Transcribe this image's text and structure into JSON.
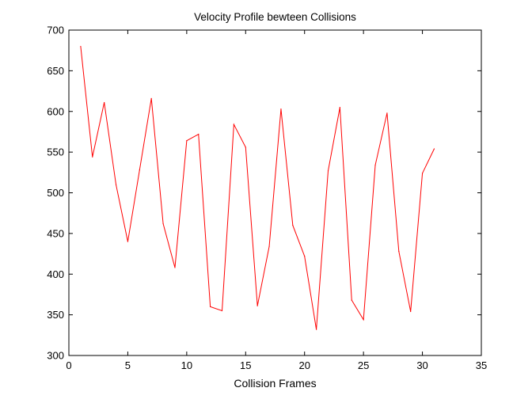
{
  "chart_data": {
    "type": "line",
    "title": "Velocity Profile bewteen Collisions",
    "xlabel": "Collision Frames",
    "ylabel": "",
    "xlim": [
      0,
      35
    ],
    "ylim": [
      300,
      700
    ],
    "xticks": [
      0,
      5,
      10,
      15,
      20,
      25,
      30,
      35
    ],
    "yticks": [
      300,
      350,
      400,
      450,
      500,
      550,
      600,
      650,
      700
    ],
    "grid": false,
    "legend": "none",
    "series": [
      {
        "color": "#ff0000",
        "x": [
          1,
          2,
          3,
          4,
          5,
          6,
          7,
          8,
          9,
          10,
          11,
          12,
          13,
          14,
          15,
          16,
          17,
          18,
          19,
          20,
          21,
          22,
          23,
          24,
          25,
          26,
          27,
          28,
          29,
          30,
          31
        ],
        "y": [
          680,
          544,
          611,
          510,
          440,
          528,
          616,
          462,
          408,
          564,
          572,
          360,
          355,
          584,
          556,
          361,
          434,
          603,
          460,
          422,
          332,
          527,
          605,
          368,
          344,
          534,
          598,
          428,
          354,
          524,
          554
        ]
      }
    ]
  }
}
